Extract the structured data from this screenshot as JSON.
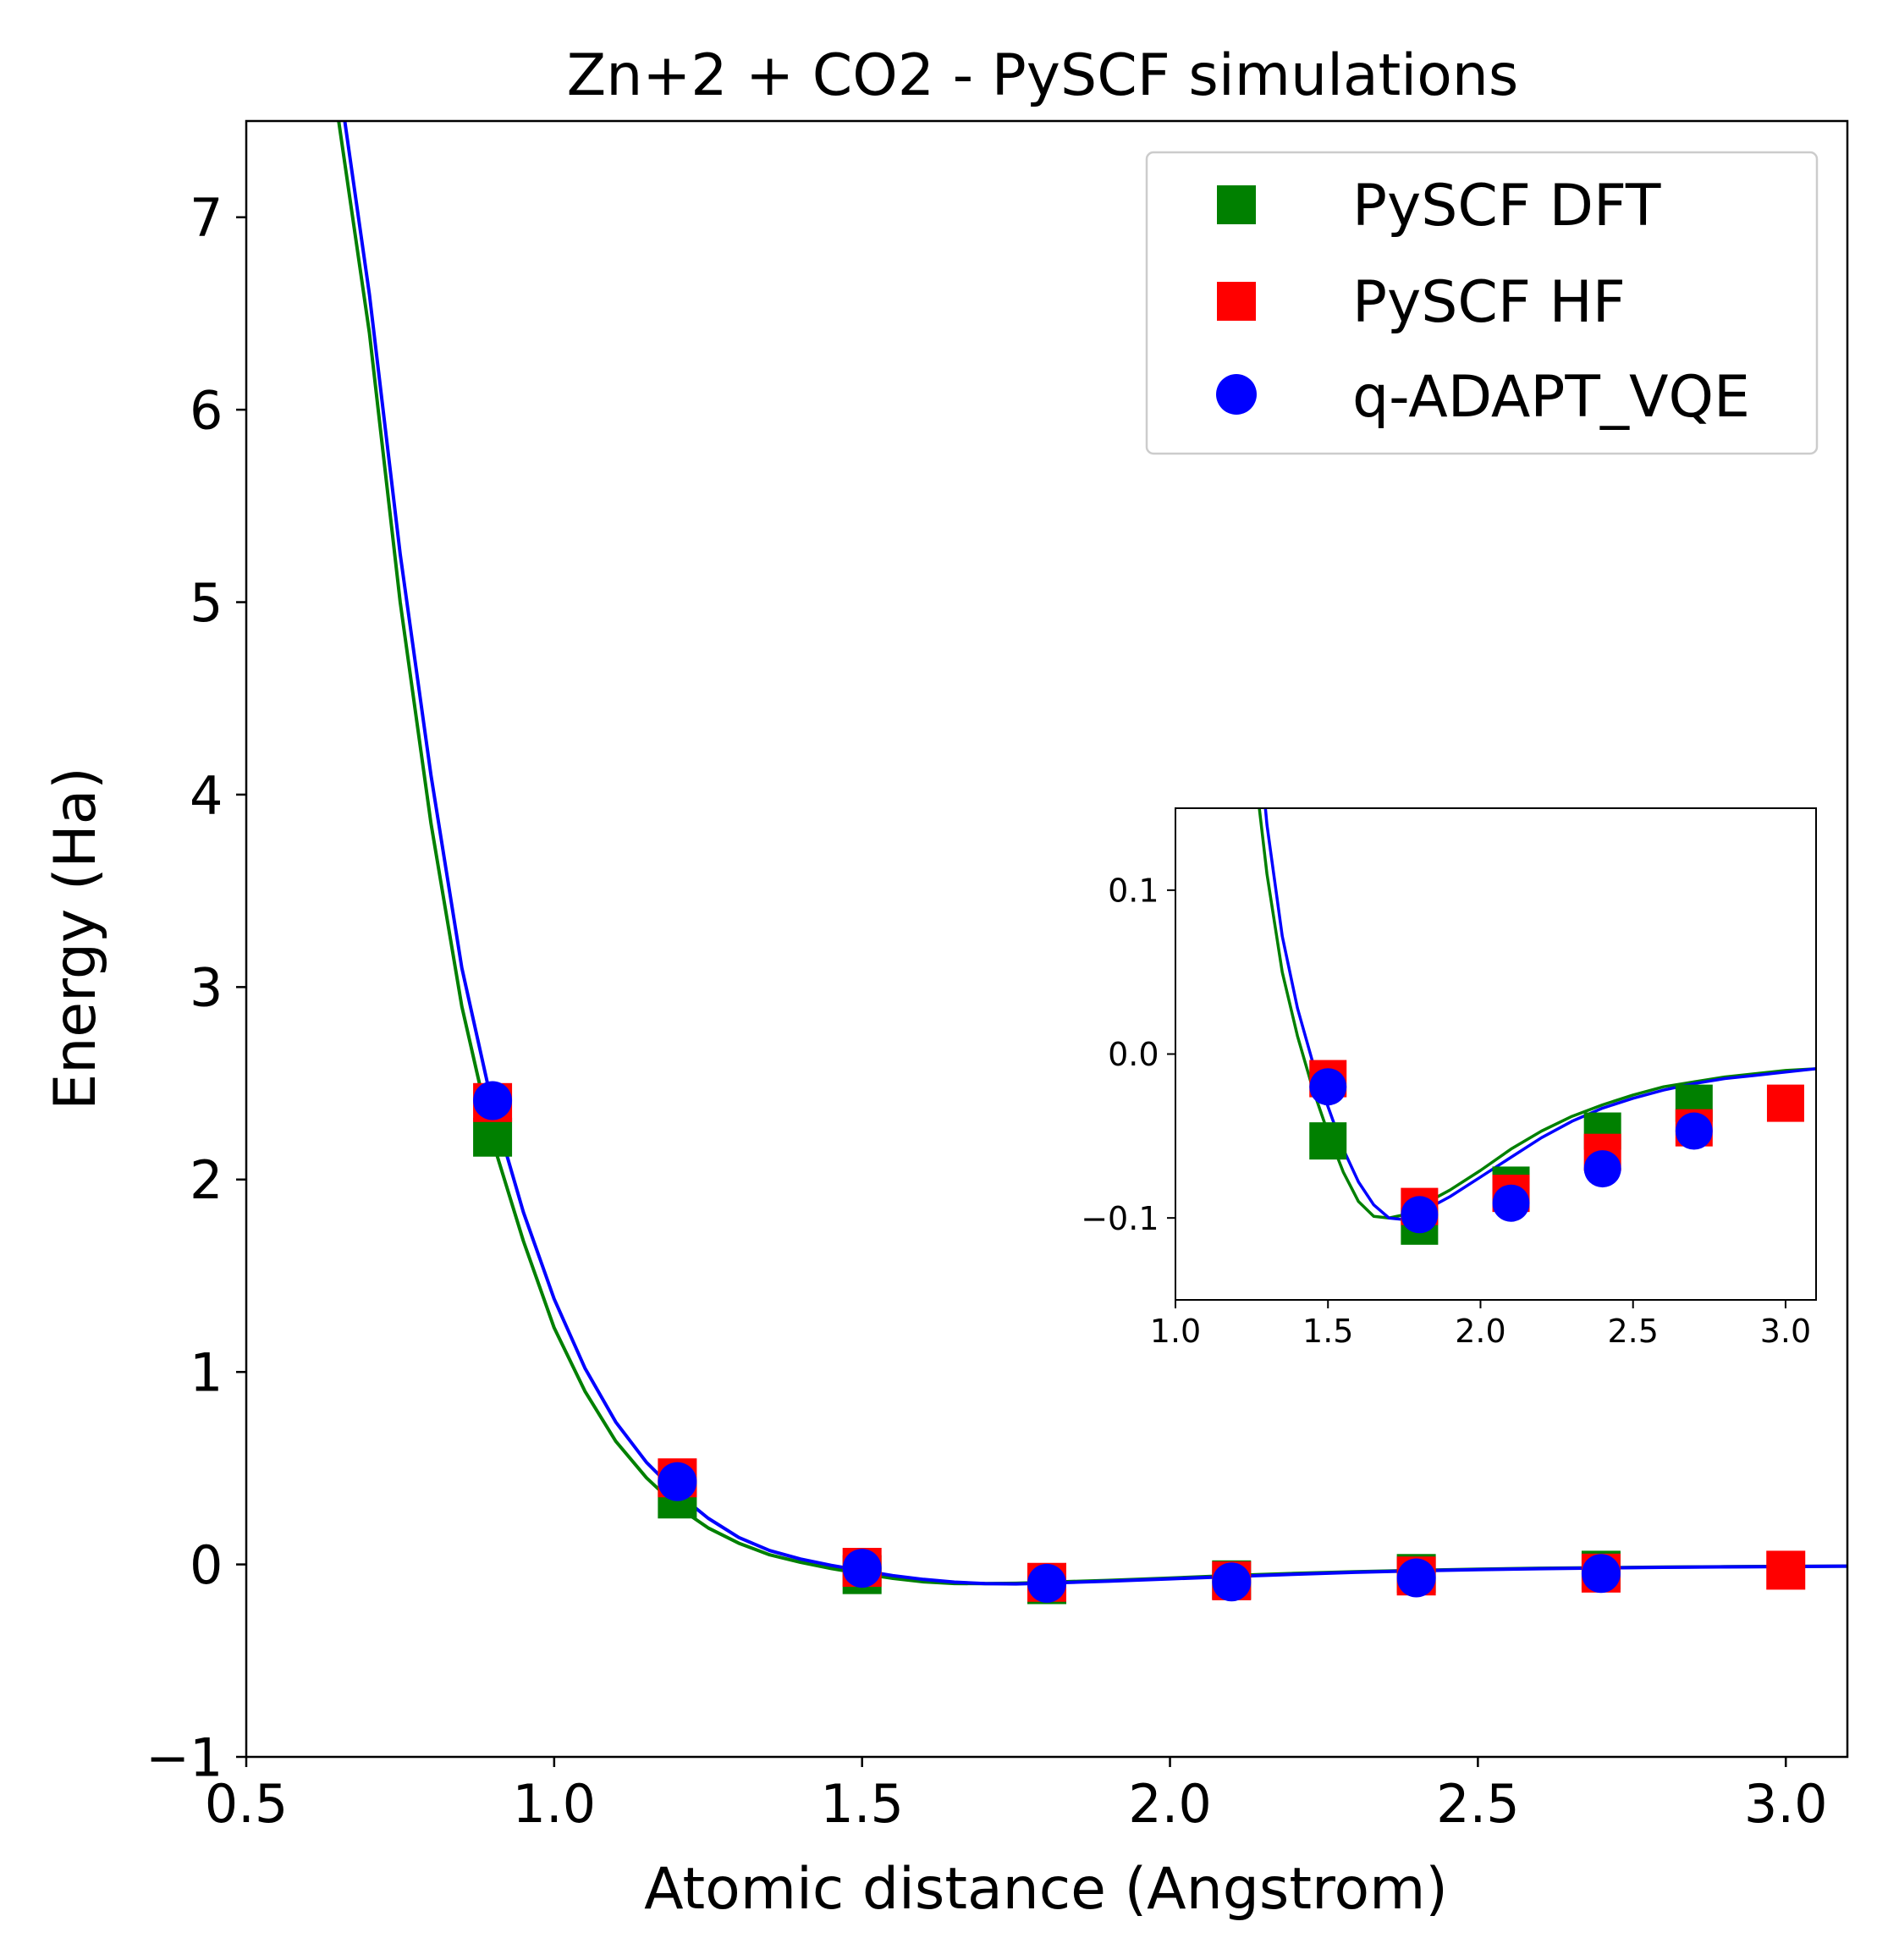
{
  "chart_data": [
    {
      "type": "scatter",
      "title": "Zn+2 + CO2 - PySCF simulations",
      "xlabel": "Atomic distance (Angstrom)",
      "ylabel": "Energy (Ha)",
      "xlim": [
        0.5,
        3.1
      ],
      "ylim": [
        -1,
        7.5
      ],
      "xticks": [
        0.5,
        1.0,
        1.5,
        2.0,
        2.5,
        3.0
      ],
      "xtick_labels": [
        "0.5",
        "1.0",
        "1.5",
        "2.0",
        "2.5",
        "3.0"
      ],
      "yticks": [
        -1,
        0,
        1,
        2,
        3,
        4,
        5,
        6,
        7
      ],
      "ytick_labels": [
        "−1",
        "0",
        "1",
        "2",
        "3",
        "4",
        "5",
        "6",
        "7"
      ],
      "legend_position": "top-right",
      "legend": [
        "PySCF DFT",
        "PySCF HF",
        "q-ADAPT_VQE"
      ],
      "series": [
        {
          "name": "PySCF DFT",
          "marker": "square",
          "color": "#008000",
          "x": [
            0.9,
            1.2,
            1.5,
            1.8,
            2.1,
            2.4,
            2.7
          ],
          "y": [
            2.22,
            0.34,
            -0.053,
            -0.105,
            -0.08,
            -0.047,
            -0.03
          ]
        },
        {
          "name": "PySCF HF",
          "marker": "square",
          "color": "#ff0000",
          "x": [
            0.9,
            1.2,
            1.5,
            1.8,
            2.1,
            2.4,
            2.7,
            3.0
          ],
          "y": [
            2.4,
            0.45,
            -0.015,
            -0.093,
            -0.085,
            -0.06,
            -0.045,
            -0.03
          ]
        },
        {
          "name": "q-ADAPT_VQE",
          "marker": "circle",
          "color": "#0000ff",
          "x": [
            0.9,
            1.2,
            1.5,
            1.8,
            2.1,
            2.4,
            2.7
          ],
          "y": [
            2.41,
            0.43,
            -0.02,
            -0.098,
            -0.091,
            -0.07,
            -0.047
          ]
        }
      ],
      "curves": [
        {
          "color": "#008000",
          "x": [
            0.65,
            0.7,
            0.75,
            0.8,
            0.85,
            0.9,
            0.95,
            1.0,
            1.05,
            1.1,
            1.15,
            1.2,
            1.25,
            1.3,
            1.35,
            1.4,
            1.45,
            1.5,
            1.55,
            1.6,
            1.65,
            1.7,
            1.75,
            1.8,
            1.85,
            1.9,
            2.0,
            2.1,
            2.2,
            2.3,
            2.4,
            2.5,
            2.6,
            2.7,
            2.8,
            2.9,
            3.0,
            3.1
          ],
          "y": [
            7.5,
            6.4,
            5.0,
            3.85,
            2.9,
            2.2,
            1.68,
            1.23,
            0.9,
            0.64,
            0.45,
            0.3,
            0.19,
            0.11,
            0.05,
            0.011,
            -0.021,
            -0.048,
            -0.072,
            -0.09,
            -0.099,
            -0.1,
            -0.098,
            -0.093,
            -0.088,
            -0.083,
            -0.071,
            -0.058,
            -0.047,
            -0.038,
            -0.031,
            -0.025,
            -0.02,
            -0.017,
            -0.014,
            -0.012,
            -0.01,
            -0.009
          ]
        },
        {
          "color": "#0000ff",
          "x": [
            0.66,
            0.7,
            0.75,
            0.8,
            0.85,
            0.9,
            0.95,
            1.0,
            1.05,
            1.1,
            1.15,
            1.2,
            1.25,
            1.3,
            1.35,
            1.4,
            1.45,
            1.5,
            1.55,
            1.6,
            1.65,
            1.7,
            1.75,
            1.8,
            1.85,
            1.9,
            2.0,
            2.1,
            2.2,
            2.3,
            2.4,
            2.5,
            2.6,
            2.7,
            2.8,
            2.9,
            3.0,
            3.1
          ],
          "y": [
            7.5,
            6.6,
            5.25,
            4.1,
            3.1,
            2.38,
            1.83,
            1.38,
            1.02,
            0.74,
            0.53,
            0.37,
            0.24,
            0.14,
            0.072,
            0.028,
            -0.005,
            -0.032,
            -0.058,
            -0.078,
            -0.092,
            -0.1,
            -0.101,
            -0.097,
            -0.092,
            -0.087,
            -0.075,
            -0.063,
            -0.051,
            -0.041,
            -0.033,
            -0.027,
            -0.022,
            -0.018,
            -0.015,
            -0.013,
            -0.011,
            -0.009
          ]
        }
      ]
    },
    {
      "type": "scatter",
      "title": "",
      "xlabel": "",
      "ylabel": "",
      "xlim": [
        1.0,
        3.1
      ],
      "ylim": [
        -0.15,
        0.15
      ],
      "xticks": [
        1.0,
        1.5,
        2.0,
        2.5,
        3.0
      ],
      "xtick_labels": [
        "1.0",
        "1.5",
        "2.0",
        "2.5",
        "3.0"
      ],
      "yticks": [
        -0.1,
        0.0,
        0.1
      ],
      "ytick_labels": [
        "−0.1",
        "0.0",
        "0.1"
      ]
    }
  ]
}
